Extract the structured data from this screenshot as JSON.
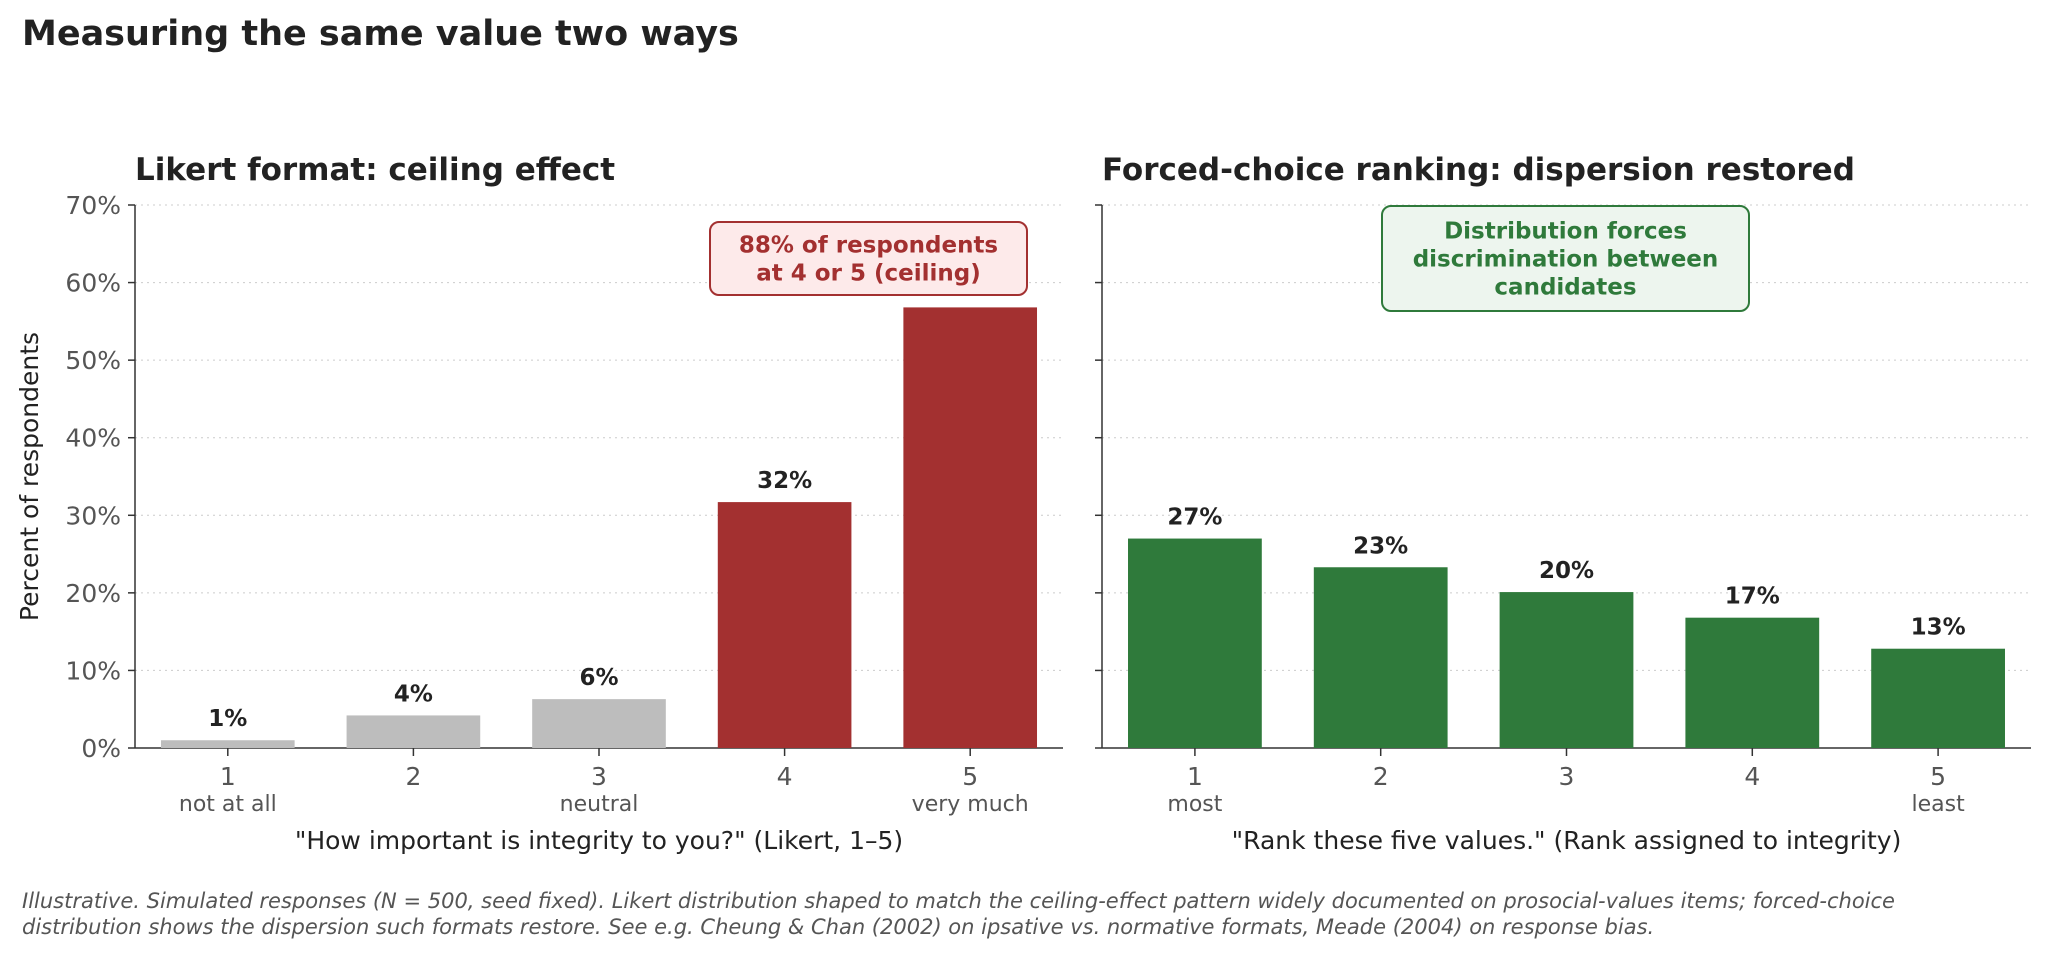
{
  "title": "Measuring the same value two ways",
  "footnote": [
    "Illustrative. Simulated responses (N = 500, seed fixed). Likert distribution shaped to match the ceiling-effect pattern widely documented on prosocial-values items; forced-choice",
    "distribution shows the dispersion such formats restore. See e.g. Cheung & Chan (2002) on ipsative vs. normative formats, Meade (2004) on response bias."
  ],
  "chart_data": [
    {
      "type": "bar",
      "title": "Likert format: ceiling effect",
      "ylabel": "Percent of respondents",
      "xlabel": "\"How important is integrity to you?\"  (Likert, 1–5)",
      "ylim": [
        0,
        70
      ],
      "yticks": [
        "0%",
        "10%",
        "20%",
        "30%",
        "40%",
        "50%",
        "60%",
        "70%"
      ],
      "grid": "horizontal dotted",
      "categories": [
        "1",
        "2",
        "3",
        "4",
        "5"
      ],
      "category_sublabels": [
        "not at all",
        "",
        "neutral",
        "",
        "very much"
      ],
      "values": [
        1.0,
        4.2,
        6.3,
        31.7,
        56.8
      ],
      "data_labels": [
        "1%",
        "4%",
        "6%",
        "32%",
        ""
      ],
      "colors": [
        "#bdbdbd",
        "#bdbdbd",
        "#bdbdbd",
        "#a33030",
        "#a33030"
      ],
      "annotation": {
        "lines": [
          "88% of respondents",
          "at 4 or 5  (ceiling)"
        ],
        "color": "#a33030",
        "fill": "#fdeaea"
      }
    },
    {
      "type": "bar",
      "title": "Forced-choice ranking: dispersion restored",
      "xlabel": "\"Rank these five values.\"  (Rank assigned to integrity)",
      "ylim": [
        0,
        70
      ],
      "grid": "horizontal dotted",
      "categories": [
        "1",
        "2",
        "3",
        "4",
        "5"
      ],
      "category_sublabels": [
        "most",
        "",
        "",
        "",
        "least"
      ],
      "values": [
        27.0,
        23.3,
        20.1,
        16.8,
        12.8
      ],
      "data_labels": [
        "27%",
        "23%",
        "20%",
        "17%",
        "13%"
      ],
      "colors": [
        "#2f7a3b",
        "#2f7a3b",
        "#2f7a3b",
        "#2f7a3b",
        "#2f7a3b"
      ],
      "annotation": {
        "lines": [
          "Distribution forces",
          "discrimination between",
          "candidates"
        ],
        "color": "#2f7a3b",
        "fill": "#edf5ee"
      }
    }
  ]
}
